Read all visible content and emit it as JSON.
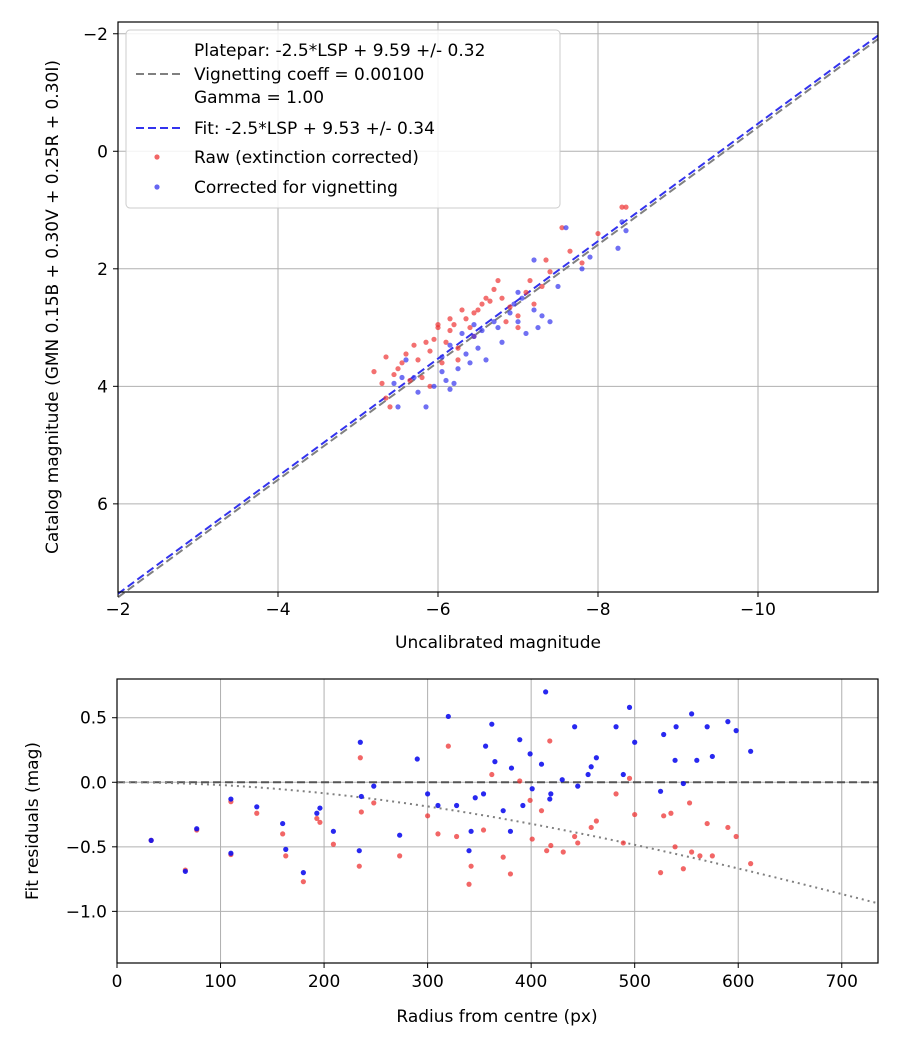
{
  "chart_data": [
    {
      "type": "scatter",
      "xlabel": "Uncalibrated magnitude",
      "ylabel": "Catalog magnitude (GMN 0.15B + 0.30V + 0.25R + 0.30I)",
      "xlim": [
        -2,
        -11.5
      ],
      "ylim": [
        7.5,
        -2.2
      ],
      "xticks": [
        -2,
        -4,
        -6,
        -8,
        -10
      ],
      "yticks": [
        -2,
        0,
        2,
        4,
        6
      ],
      "xtick_labels": [
        "−2",
        "−4",
        "−6",
        "−8",
        "−10"
      ],
      "ytick_labels": [
        "−2",
        "0",
        "2",
        "4",
        "6"
      ],
      "grid": true,
      "legend_position": "top-left",
      "legend": [
        {
          "label": "Platepar: -2.5*LSP + 9.59 +/- 0.32",
          "style": "none"
        },
        {
          "label": "Vignetting coeff = 0.00100",
          "style": "dashed-gray"
        },
        {
          "label": "Gamma = 1.00",
          "style": "none"
        },
        {
          "label": "Fit: -2.5*LSP + 9.53 +/- 0.34",
          "style": "dashed-blue"
        },
        {
          "label": "Raw (extinction corrected)",
          "style": "red-dot"
        },
        {
          "label": "Corrected for vignetting",
          "style": "blue-dot"
        }
      ],
      "lines": [
        {
          "name": "Platepar",
          "slope": 1,
          "intercept": 9.59,
          "color": "#808080"
        },
        {
          "name": "Fit",
          "slope": 1,
          "intercept": 9.53,
          "color": "#3333ee"
        }
      ],
      "series": [
        {
          "name": "Raw (extinction corrected)",
          "color": "#ee3333",
          "points": [
            [
              -5.2,
              3.75
            ],
            [
              -5.3,
              3.95
            ],
            [
              -5.4,
              4.35
            ],
            [
              -5.35,
              3.5
            ],
            [
              -5.45,
              3.8
            ],
            [
              -5.5,
              3.7
            ],
            [
              -5.6,
              3.45
            ],
            [
              -5.7,
              3.3
            ],
            [
              -5.75,
              3.55
            ],
            [
              -5.8,
              3.85
            ],
            [
              -5.9,
              4.0
            ],
            [
              -5.9,
              3.4
            ],
            [
              -5.95,
              3.2
            ],
            [
              -6.05,
              3.6
            ],
            [
              -6.0,
              3.0
            ],
            [
              -6.1,
              3.25
            ],
            [
              -6.2,
              2.95
            ],
            [
              -6.25,
              3.35
            ],
            [
              -6.3,
              2.7
            ],
            [
              -6.4,
              3.0
            ],
            [
              -6.45,
              3.15
            ],
            [
              -6.5,
              2.7
            ],
            [
              -6.55,
              2.6
            ],
            [
              -6.6,
              2.5
            ],
            [
              -6.7,
              2.35
            ],
            [
              -6.75,
              2.2
            ],
            [
              -6.8,
              2.5
            ],
            [
              -6.85,
              2.9
            ],
            [
              -6.9,
              2.65
            ],
            [
              -7.0,
              2.8
            ],
            [
              -7.0,
              3.0
            ],
            [
              -7.1,
              2.4
            ],
            [
              -7.15,
              2.2
            ],
            [
              -7.2,
              2.6
            ],
            [
              -7.3,
              2.3
            ],
            [
              -7.4,
              2.05
            ],
            [
              -7.55,
              1.3
            ],
            [
              -7.65,
              1.7
            ],
            [
              -7.8,
              1.9
            ],
            [
              -8.0,
              1.4
            ],
            [
              -8.3,
              0.95
            ],
            [
              -8.35,
              0.95
            ],
            [
              -5.55,
              3.6
            ],
            [
              -5.85,
              3.25
            ],
            [
              -6.15,
              3.05
            ],
            [
              -6.35,
              2.85
            ],
            [
              -6.15,
              2.85
            ],
            [
              -5.65,
              3.9
            ],
            [
              -6.45,
              2.75
            ],
            [
              -6.65,
              2.55
            ],
            [
              -7.35,
              1.85
            ],
            [
              -6.0,
              2.95
            ],
            [
              -5.35,
              4.2
            ],
            [
              -6.25,
              3.55
            ]
          ]
        },
        {
          "name": "Corrected for vignetting",
          "color": "#3333ee",
          "points": [
            [
              -5.45,
              3.95
            ],
            [
              -5.55,
              3.85
            ],
            [
              -5.6,
              3.55
            ],
            [
              -5.7,
              3.85
            ],
            [
              -5.75,
              4.1
            ],
            [
              -5.85,
              4.35
            ],
            [
              -5.95,
              4.0
            ],
            [
              -6.05,
              3.75
            ],
            [
              -6.15,
              3.3
            ],
            [
              -6.2,
              3.95
            ],
            [
              -6.25,
              3.7
            ],
            [
              -6.35,
              3.45
            ],
            [
              -6.4,
              3.6
            ],
            [
              -6.45,
              3.15
            ],
            [
              -6.5,
              3.35
            ],
            [
              -6.55,
              3.05
            ],
            [
              -6.6,
              3.55
            ],
            [
              -6.7,
              2.9
            ],
            [
              -6.75,
              3.0
            ],
            [
              -6.8,
              3.25
            ],
            [
              -6.9,
              2.75
            ],
            [
              -6.95,
              2.6
            ],
            [
              -7.0,
              2.9
            ],
            [
              -7.05,
              2.5
            ],
            [
              -7.1,
              3.1
            ],
            [
              -7.2,
              2.7
            ],
            [
              -7.3,
              2.8
            ],
            [
              -7.4,
              2.9
            ],
            [
              -7.5,
              2.3
            ],
            [
              -7.6,
              1.3
            ],
            [
              -7.8,
              2.0
            ],
            [
              -7.9,
              1.8
            ],
            [
              -8.25,
              1.65
            ],
            [
              -8.35,
              1.35
            ],
            [
              -8.3,
              1.2
            ],
            [
              -7.2,
              1.85
            ],
            [
              -6.45,
              2.95
            ],
            [
              -6.05,
              3.5
            ],
            [
              -5.5,
              4.35
            ],
            [
              -6.1,
              3.9
            ],
            [
              -6.15,
              4.05
            ],
            [
              -7.0,
              2.4
            ],
            [
              -6.3,
              3.1
            ],
            [
              -7.25,
              3.0
            ]
          ]
        }
      ]
    },
    {
      "type": "scatter",
      "xlabel": "Radius from centre (px)",
      "ylabel": "Fit residuals (mag)",
      "xlim": [
        0,
        735
      ],
      "ylim": [
        -1.4,
        0.8
      ],
      "xticks": [
        0,
        100,
        200,
        300,
        400,
        500,
        600,
        700
      ],
      "yticks": [
        0.5,
        0.0,
        -0.5,
        -1.0
      ],
      "xtick_labels": [
        "0",
        "100",
        "200",
        "300",
        "400",
        "500",
        "600",
        "700"
      ],
      "ytick_labels": [
        "0.5",
        "0.0",
        "−0.5",
        "−1.0"
      ],
      "grid": true,
      "reference_line": {
        "y": 0,
        "color": "#555555"
      },
      "vignetting_curve": {
        "coeff": 0.001,
        "color": "#808080"
      },
      "series": [
        {
          "name": "Raw (extinction corrected)",
          "color": "#ee3333",
          "points": [
            [
              33,
              -0.45
            ],
            [
              66,
              -0.68
            ],
            [
              77,
              -0.37
            ],
            [
              110,
              -0.56
            ],
            [
              110,
              -0.15
            ],
            [
              135,
              -0.24
            ],
            [
              160,
              -0.4
            ],
            [
              163,
              -0.57
            ],
            [
              180,
              -0.77
            ],
            [
              193,
              -0.28
            ],
            [
              196,
              -0.31
            ],
            [
              209,
              -0.48
            ],
            [
              234,
              -0.65
            ],
            [
              235,
              0.19
            ],
            [
              236,
              -0.23
            ],
            [
              248,
              -0.16
            ],
            [
              273,
              -0.57
            ],
            [
              300,
              -0.26
            ],
            [
              310,
              -0.4
            ],
            [
              320,
              0.28
            ],
            [
              328,
              -0.42
            ],
            [
              340,
              -0.79
            ],
            [
              342,
              -0.65
            ],
            [
              354,
              -0.37
            ],
            [
              362,
              0.06
            ],
            [
              373,
              -0.58
            ],
            [
              380,
              -0.71
            ],
            [
              389,
              0.01
            ],
            [
              399,
              -0.14
            ],
            [
              401,
              -0.44
            ],
            [
              410,
              -0.22
            ],
            [
              418,
              0.32
            ],
            [
              415,
              -0.53
            ],
            [
              419,
              -0.49
            ],
            [
              431,
              -0.54
            ],
            [
              442,
              -0.42
            ],
            [
              445,
              -0.47
            ],
            [
              458,
              -0.35
            ],
            [
              463,
              -0.3
            ],
            [
              482,
              -0.09
            ],
            [
              489,
              -0.47
            ],
            [
              495,
              0.03
            ],
            [
              500,
              -0.25
            ],
            [
              525,
              -0.7
            ],
            [
              528,
              -0.26
            ],
            [
              535,
              -0.24
            ],
            [
              539,
              -0.5
            ],
            [
              547,
              -0.67
            ],
            [
              553,
              -0.16
            ],
            [
              555,
              -0.54
            ],
            [
              563,
              -0.57
            ],
            [
              570,
              -0.32
            ],
            [
              575,
              -0.57
            ],
            [
              590,
              -0.35
            ],
            [
              598,
              -0.42
            ],
            [
              612,
              -0.63
            ]
          ]
        },
        {
          "name": "Corrected for vignetting",
          "color": "#1111ee",
          "points": [
            [
              33,
              -0.45
            ],
            [
              66,
              -0.69
            ],
            [
              77,
              -0.36
            ],
            [
              110,
              -0.55
            ],
            [
              110,
              -0.13
            ],
            [
              135,
              -0.19
            ],
            [
              160,
              -0.32
            ],
            [
              163,
              -0.52
            ],
            [
              180,
              -0.7
            ],
            [
              193,
              -0.24
            ],
            [
              196,
              -0.2
            ],
            [
              209,
              -0.38
            ],
            [
              234,
              -0.53
            ],
            [
              235,
              0.31
            ],
            [
              236,
              -0.11
            ],
            [
              248,
              -0.03
            ],
            [
              273,
              -0.41
            ],
            [
              290,
              0.18
            ],
            [
              300,
              -0.09
            ],
            [
              310,
              -0.18
            ],
            [
              320,
              0.51
            ],
            [
              328,
              -0.18
            ],
            [
              340,
              -0.53
            ],
            [
              342,
              -0.38
            ],
            [
              346,
              -0.12
            ],
            [
              354,
              -0.09
            ],
            [
              356,
              0.28
            ],
            [
              362,
              0.45
            ],
            [
              365,
              0.16
            ],
            [
              373,
              -0.22
            ],
            [
              380,
              -0.38
            ],
            [
              381,
              0.11
            ],
            [
              389,
              0.33
            ],
            [
              392,
              -0.18
            ],
            [
              399,
              0.22
            ],
            [
              401,
              -0.05
            ],
            [
              410,
              0.14
            ],
            [
              414,
              0.7
            ],
            [
              418,
              -0.13
            ],
            [
              419,
              -0.09
            ],
            [
              430,
              0.02
            ],
            [
              442,
              0.43
            ],
            [
              445,
              -0.03
            ],
            [
              455,
              0.06
            ],
            [
              458,
              0.12
            ],
            [
              463,
              0.19
            ],
            [
              482,
              0.43
            ],
            [
              489,
              0.06
            ],
            [
              495,
              0.58
            ],
            [
              500,
              0.31
            ],
            [
              525,
              -0.07
            ],
            [
              528,
              0.37
            ],
            [
              539,
              0.17
            ],
            [
              540,
              0.43
            ],
            [
              547,
              -0.01
            ],
            [
              555,
              0.53
            ],
            [
              560,
              0.17
            ],
            [
              570,
              0.43
            ],
            [
              575,
              0.2
            ],
            [
              590,
              0.47
            ],
            [
              598,
              0.4
            ],
            [
              612,
              0.24
            ]
          ]
        }
      ]
    }
  ]
}
